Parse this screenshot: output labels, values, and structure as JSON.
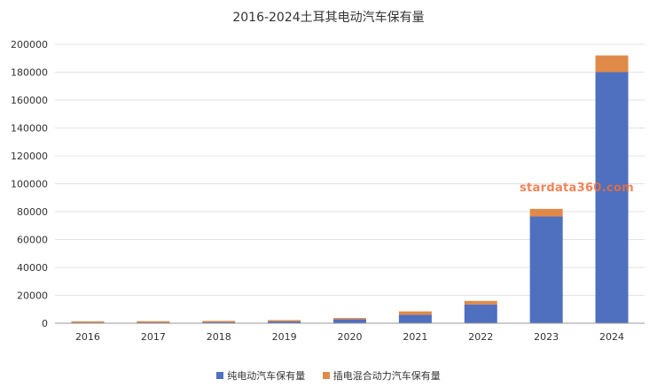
{
  "chart_data": {
    "type": "bar",
    "stacked": true,
    "title": "2016-2024土耳其电动汽车保有量",
    "categories": [
      "2016",
      "2017",
      "2018",
      "2019",
      "2020",
      "2021",
      "2022",
      "2023",
      "2024"
    ],
    "series": [
      {
        "name": "纯电动汽车保有量",
        "color": "#4f6fbf",
        "values": [
          400,
          500,
          700,
          1300,
          2800,
          6000,
          13500,
          76500,
          180000
        ]
      },
      {
        "name": "插电混合动力汽车保有量",
        "color": "#e08a4a",
        "values": [
          100,
          100,
          100,
          200,
          700,
          2500,
          2500,
          5500,
          12000
        ]
      }
    ],
    "ylim": [
      0,
      200000
    ],
    "yticks": [
      0,
      20000,
      40000,
      60000,
      80000,
      100000,
      120000,
      140000,
      160000,
      180000,
      200000
    ],
    "grid": true,
    "legend_position": "bottom"
  },
  "watermark": "stardata360.com"
}
